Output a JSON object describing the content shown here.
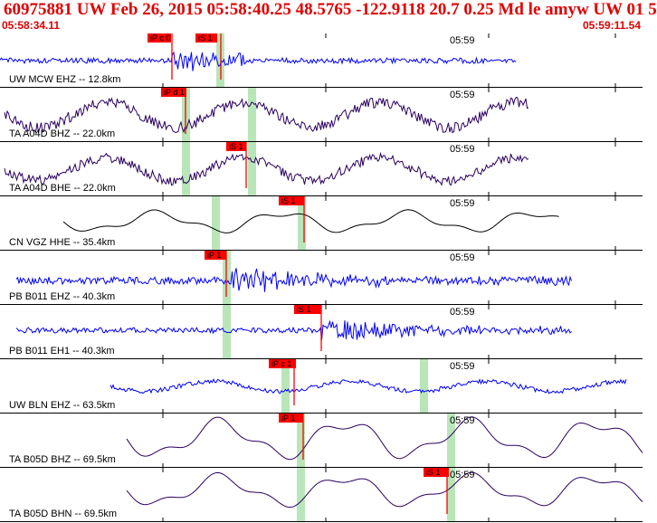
{
  "header": {
    "title": "60975881 UW Feb 26, 2015 05:58:40.25   48.5765 -122.9118 20.7 0.25 Md le amyw UW 01   5",
    "time_start": "05:58:34.11",
    "time_end": "05:59:11.54"
  },
  "colors": {
    "header_text": "#e00000",
    "blue": "#0000ff",
    "purple": "#2a0060",
    "black": "#000000",
    "pick_fill": "#ff0000",
    "window_fill": "#b9e6b9"
  },
  "traces": [
    {
      "label": "UW MCW EHZ -- 12.8km",
      "tick_label": "05:59",
      "color": "blue",
      "style": "noisy-burst",
      "picks": [
        {
          "text": "iP c 0"
        },
        {
          "text": "iS 1"
        }
      ]
    },
    {
      "label": "TA A04D BHZ -- 22.0km",
      "tick_label": "05:59",
      "color": "purple",
      "style": "wave-noisy",
      "picks": [
        {
          "text": "iP d 1"
        }
      ]
    },
    {
      "label": "TA A04D BHE -- 22.0km",
      "tick_label": "05:59",
      "color": "purple",
      "style": "wave-noisy",
      "picks": [
        {
          "text": "iS 1"
        }
      ]
    },
    {
      "label": "CN VGZ HHE -- 35.4km",
      "tick_label": "05:59",
      "color": "black",
      "style": "wave-smooth",
      "picks": [
        {
          "text": "iS 1"
        }
      ]
    },
    {
      "label": "PB B011 EHZ -- 40.3km",
      "tick_label": "05:59",
      "color": "blue",
      "style": "noise",
      "picks": [
        {
          "text": "iP 1"
        }
      ]
    },
    {
      "label": "PB B011 EH1 -- 40.3km",
      "tick_label": "05:59",
      "color": "blue",
      "style": "noise",
      "picks": [
        {
          "text": "iS 1"
        }
      ]
    },
    {
      "label": "UW BLN EHZ -- 63.5km",
      "tick_label": "05:59",
      "color": "blue",
      "style": "wave-noisy",
      "picks": [
        {
          "text": "iP c 1"
        }
      ]
    },
    {
      "label": "TA B05D BHZ -- 69.5km",
      "tick_label": "05:59",
      "color": "purple",
      "style": "wave-smooth",
      "picks": [
        {
          "text": "iP 1"
        }
      ]
    },
    {
      "label": "TA B05D BHN -- 69.5km",
      "tick_label": "05:59",
      "color": "purple",
      "style": "wave-smooth",
      "picks": [
        {
          "text": "iS 1"
        }
      ]
    }
  ]
}
